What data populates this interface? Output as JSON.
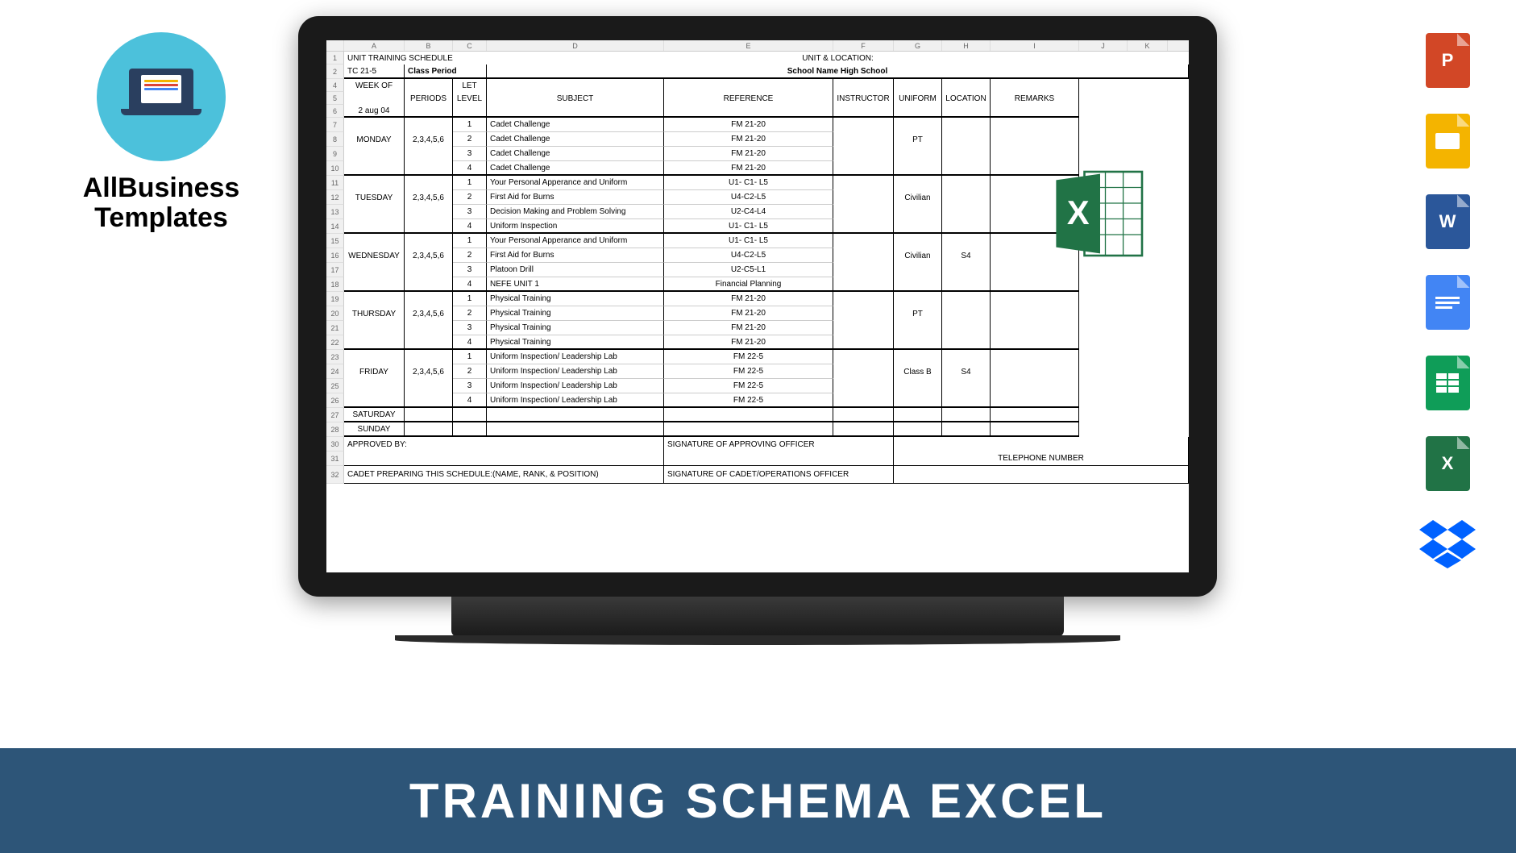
{
  "brand": {
    "line1": "AllBusiness",
    "line2": "Templates"
  },
  "footer": {
    "title": "TRAINING SCHEMA EXCEL",
    "bg": "#2d5578"
  },
  "col_letters": [
    "A",
    "B",
    "C",
    "D",
    "E",
    "F",
    "G",
    "H",
    "I",
    "J",
    "K"
  ],
  "sheet": {
    "title_left": "UNIT TRAINING SCHEDULE",
    "title_right": "UNIT & LOCATION:",
    "tc": "TC 21-5",
    "class_period": "Class Period",
    "school": "School Name High School",
    "headers": {
      "week_of": "WEEK OF",
      "week_date": "2 aug 04",
      "periods": "PERIODS",
      "let_level": "LET LEVEL",
      "subject": "SUBJECT",
      "reference": "REFERENCE",
      "instructor": "INSTRUCTOR",
      "uniform": "UNIFORM",
      "location": "LOCATION",
      "remarks": "REMARKS"
    },
    "days": [
      {
        "name": "MONDAY",
        "periods": "2,3,4,5,6",
        "uniform": "PT",
        "location": "",
        "rows": [
          {
            "lvl": "1",
            "subj": "Cadet Challenge",
            "ref": "FM 21-20"
          },
          {
            "lvl": "2",
            "subj": "Cadet Challenge",
            "ref": "FM 21-20"
          },
          {
            "lvl": "3",
            "subj": "Cadet Challenge",
            "ref": "FM 21-20"
          },
          {
            "lvl": "4",
            "subj": "Cadet Challenge",
            "ref": "FM 21-20"
          }
        ]
      },
      {
        "name": "TUESDAY",
        "periods": "2,3,4,5,6",
        "uniform": "Civilian",
        "location": "",
        "rows": [
          {
            "lvl": "1",
            "subj": "Your Personal Apperance and Uniform",
            "ref": "U1- C1- L5"
          },
          {
            "lvl": "2",
            "subj": "First Aid for Burns",
            "ref": "U4-C2-L5"
          },
          {
            "lvl": "3",
            "subj": "Decision Making and Problem Solving",
            "ref": "U2-C4-L4"
          },
          {
            "lvl": "4",
            "subj": "Uniform Inspection",
            "ref": "U1- C1- L5"
          }
        ]
      },
      {
        "name": "WEDNESDAY",
        "periods": "2,3,4,5,6",
        "uniform": "Civilian",
        "location": "S4",
        "rows": [
          {
            "lvl": "1",
            "subj": "Your Personal Apperance and Uniform",
            "ref": "U1- C1- L5"
          },
          {
            "lvl": "2",
            "subj": "First Aid for Burns",
            "ref": "U4-C2-L5"
          },
          {
            "lvl": "3",
            "subj": "Platoon Drill",
            "ref": "U2-C5-L1"
          },
          {
            "lvl": "4",
            "subj": "NEFE UNIT 1",
            "ref": "Financial Planning"
          }
        ]
      },
      {
        "name": "THURSDAY",
        "periods": "2,3,4,5,6",
        "uniform": "PT",
        "location": "",
        "rows": [
          {
            "lvl": "1",
            "subj": "Physical Training",
            "ref": "FM 21-20"
          },
          {
            "lvl": "2",
            "subj": "Physical Training",
            "ref": "FM 21-20"
          },
          {
            "lvl": "3",
            "subj": "Physical Training",
            "ref": "FM 21-20"
          },
          {
            "lvl": "4",
            "subj": "Physical Training",
            "ref": "FM 21-20"
          }
        ]
      },
      {
        "name": "FRIDAY",
        "periods": "2,3,4,5,6",
        "uniform": "Class B",
        "location": "S4",
        "rows": [
          {
            "lvl": "1",
            "subj": "Uniform Inspection/ Leadership Lab",
            "ref": "FM 22-5"
          },
          {
            "lvl": "2",
            "subj": "Uniform Inspection/ Leadership Lab",
            "ref": "FM 22-5"
          },
          {
            "lvl": "3",
            "subj": "Uniform Inspection/ Leadership Lab",
            "ref": "FM 22-5"
          },
          {
            "lvl": "4",
            "subj": "Uniform Inspection/ Leadership Lab",
            "ref": "FM 22-5"
          }
        ]
      }
    ],
    "weekend": [
      "SATURDAY",
      "SUNDAY"
    ],
    "footer": {
      "approved": "APPROVED BY:",
      "sig1": "SIGNATURE OF APPROVING OFFICER",
      "cadet": "CADET PREPARING THIS SCHEDULE:(NAME, RANK, & POSITION)",
      "sig2": "SIGNATURE OF CADET/OPERATIONS OFFICER",
      "tel": "TELEPHONE NUMBER"
    }
  },
  "side_icons": [
    {
      "name": "powerpoint-icon",
      "bg": "#d24726",
      "label": "P"
    },
    {
      "name": "slides-icon",
      "bg": "#f4b400",
      "label": ""
    },
    {
      "name": "word-icon",
      "bg": "#2b579a",
      "label": "W"
    },
    {
      "name": "docs-icon",
      "bg": "#4285f4",
      "label": ""
    },
    {
      "name": "sheets-icon",
      "bg": "#0f9d58",
      "label": ""
    },
    {
      "name": "excel-icon",
      "bg": "#217346",
      "label": "X"
    },
    {
      "name": "dropbox-icon",
      "bg": "#0061ff",
      "label": ""
    }
  ]
}
